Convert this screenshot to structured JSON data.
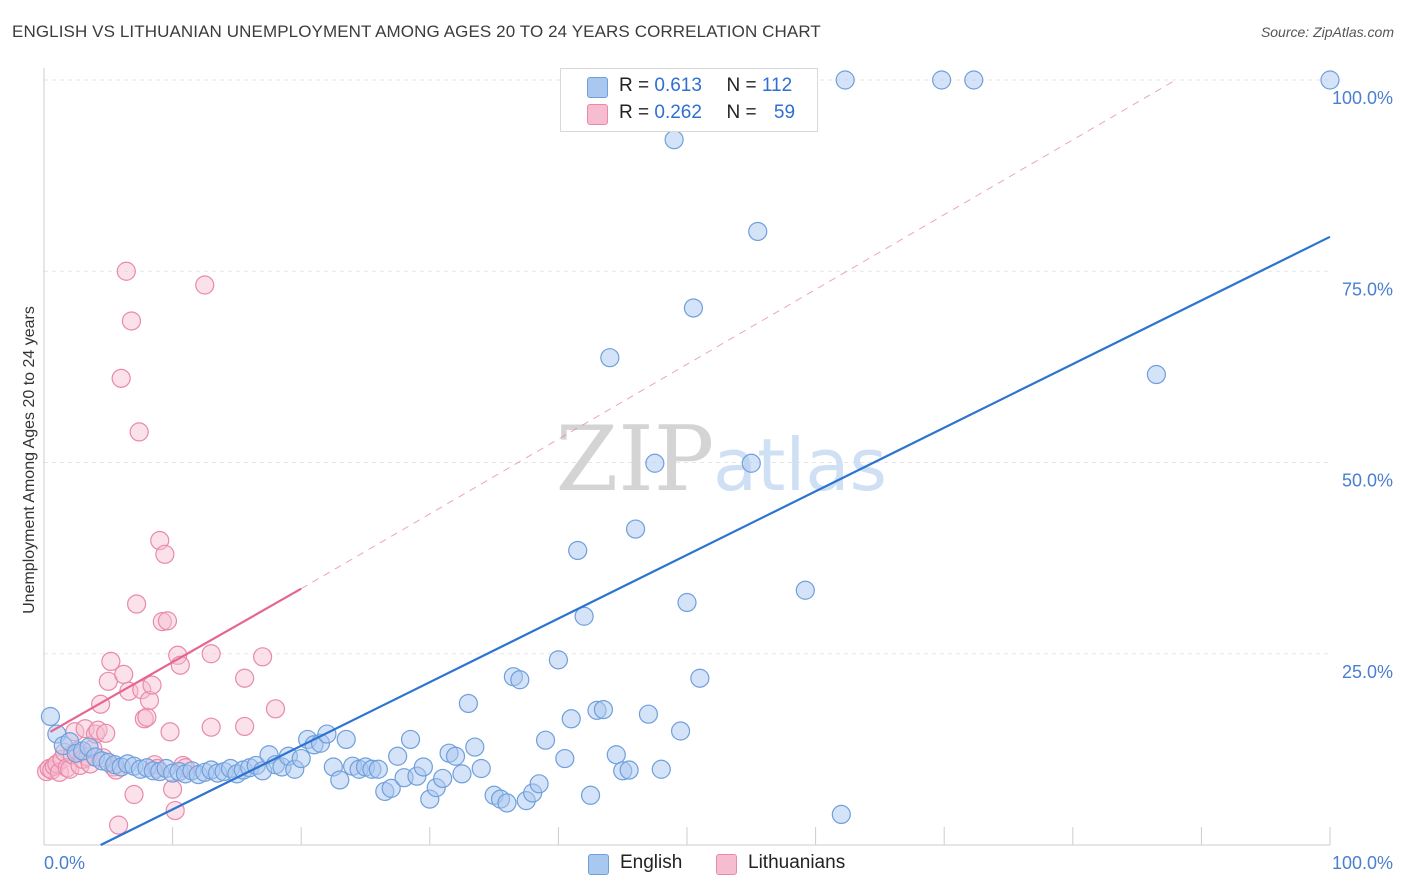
{
  "header": {
    "title": "ENGLISH VS LITHUANIAN UNEMPLOYMENT AMONG AGES 20 TO 24 YEARS CORRELATION CHART",
    "source": "Source: ZipAtlas.com"
  },
  "watermark": {
    "zip": "ZIP",
    "atlas": "atlas"
  },
  "legend": {
    "english": {
      "r_label": "R =",
      "r_value": "0.613",
      "n_label": "N =",
      "n_value": "112"
    },
    "lithuanians": {
      "r_label": "R =",
      "r_value": "0.262",
      "n_label": "N =",
      "n_value": "59"
    }
  },
  "bottom_legend": {
    "english": "English",
    "lithuanians": "Lithuanians"
  },
  "colors": {
    "english_fill": "#a9c8f0",
    "english_stroke": "#6f9fdc",
    "english_line": "#2c74d0",
    "lith_fill": "#f6bcd0",
    "lith_stroke": "#e98aa9",
    "lith_line": "#e5658f",
    "axis_text": "#4a7fd0",
    "grid": "#e6e6e6"
  },
  "chart_data": {
    "type": "scatter",
    "title": "ENGLISH VS LITHUANIAN UNEMPLOYMENT AMONG AGES 20 TO 24 YEARS CORRELATION CHART",
    "xlabel": "",
    "ylabel": "Unemployment Among Ages 20 to 24 years",
    "xlim": [
      0,
      100
    ],
    "ylim": [
      0,
      100
    ],
    "x_tick_labels": [
      {
        "value": 0,
        "label": "0.0%"
      },
      {
        "value": 100,
        "label": "100.0%"
      }
    ],
    "y_tick_labels": [
      {
        "value": 25,
        "label": "25.0%"
      },
      {
        "value": 50,
        "label": "50.0%"
      },
      {
        "value": 75,
        "label": "75.0%"
      },
      {
        "value": 100,
        "label": "100.0%"
      }
    ],
    "legend_position": "top-center",
    "grid": true,
    "series": [
      {
        "name": "English",
        "points": [
          [
            0.5,
            16.8
          ],
          [
            1,
            14.5
          ],
          [
            1.5,
            13
          ],
          [
            2,
            13.5
          ],
          [
            2.5,
            12
          ],
          [
            3,
            12.3
          ],
          [
            3.5,
            12.8
          ],
          [
            4,
            11.5
          ],
          [
            4.5,
            11
          ],
          [
            5,
            10.8
          ],
          [
            5.5,
            10.5
          ],
          [
            6,
            10.2
          ],
          [
            6.5,
            10.6
          ],
          [
            7,
            10.3
          ],
          [
            7.5,
            9.9
          ],
          [
            8,
            10.1
          ],
          [
            8.5,
            9.7
          ],
          [
            9,
            9.6
          ],
          [
            9.5,
            10
          ],
          [
            10,
            9.4
          ],
          [
            10.5,
            9.6
          ],
          [
            11,
            9.3
          ],
          [
            11.5,
            9.7
          ],
          [
            12,
            9.2
          ],
          [
            12.5,
            9.5
          ],
          [
            13,
            9.8
          ],
          [
            13.5,
            9.4
          ],
          [
            14,
            9.6
          ],
          [
            14.5,
            10
          ],
          [
            15,
            9.3
          ],
          [
            15.5,
            9.8
          ],
          [
            16,
            10.1
          ],
          [
            16.5,
            10.4
          ],
          [
            17,
            9.7
          ],
          [
            17.5,
            11.8
          ],
          [
            18,
            10.5
          ],
          [
            18.5,
            10.2
          ],
          [
            19,
            11.6
          ],
          [
            19.5,
            9.9
          ],
          [
            20,
            11.3
          ],
          [
            20.5,
            13.8
          ],
          [
            21,
            13.1
          ],
          [
            21.5,
            13.3
          ],
          [
            22,
            14.5
          ],
          [
            22.5,
            10.2
          ],
          [
            23,
            8.5
          ],
          [
            23.5,
            13.8
          ],
          [
            24,
            10.3
          ],
          [
            24.5,
            9.9
          ],
          [
            25,
            10.2
          ],
          [
            25.5,
            9.9
          ],
          [
            26,
            9.9
          ],
          [
            26.5,
            7
          ],
          [
            27,
            7.4
          ],
          [
            27.5,
            11.6
          ],
          [
            28,
            8.8
          ],
          [
            28.5,
            13.8
          ],
          [
            29,
            9
          ],
          [
            29.5,
            10.2
          ],
          [
            30,
            6
          ],
          [
            30.5,
            7.5
          ],
          [
            31,
            8.7
          ],
          [
            31.5,
            12
          ],
          [
            32,
            11.6
          ],
          [
            32.5,
            9.3
          ],
          [
            33,
            18.5
          ],
          [
            33.5,
            12.8
          ],
          [
            34,
            10
          ],
          [
            35,
            6.5
          ],
          [
            35.5,
            6
          ],
          [
            36,
            5.5
          ],
          [
            36.5,
            22
          ],
          [
            37,
            21.6
          ],
          [
            37.5,
            5.8
          ],
          [
            38,
            6.8
          ],
          [
            38.5,
            8
          ],
          [
            39,
            13.7
          ],
          [
            40,
            24.2
          ],
          [
            40.5,
            11.3
          ],
          [
            41,
            16.5
          ],
          [
            41.5,
            38.5
          ],
          [
            42,
            29.9
          ],
          [
            42.5,
            6.5
          ],
          [
            43,
            17.6
          ],
          [
            43.5,
            17.7
          ],
          [
            44,
            63.7
          ],
          [
            44.5,
            11.8
          ],
          [
            45,
            9.7
          ],
          [
            45.5,
            9.8
          ],
          [
            46,
            41.3
          ],
          [
            47,
            17.1
          ],
          [
            47.5,
            49.9
          ],
          [
            48,
            9.9
          ],
          [
            49,
            92.2
          ],
          [
            49.5,
            14.9
          ],
          [
            50,
            31.7
          ],
          [
            50.5,
            70.2
          ],
          [
            51,
            21.8
          ],
          [
            51.5,
            99.7
          ],
          [
            52,
            100
          ],
          [
            55,
            49.9
          ],
          [
            55.5,
            80.2
          ],
          [
            56.8,
            100
          ],
          [
            59.2,
            33.3
          ],
          [
            62,
            4
          ],
          [
            62.3,
            100
          ],
          [
            69.8,
            100
          ],
          [
            72.3,
            100
          ],
          [
            86.5,
            61.5
          ],
          [
            100,
            100
          ]
        ]
      },
      {
        "name": "Lithuanians",
        "points": [
          [
            0.2,
            9.6
          ],
          [
            0.4,
            10
          ],
          [
            0.6,
            9.8
          ],
          [
            0.8,
            10.3
          ],
          [
            1,
            10.6
          ],
          [
            1.2,
            9.5
          ],
          [
            1.4,
            11.2
          ],
          [
            1.6,
            12.1
          ],
          [
            1.8,
            10.1
          ],
          [
            2,
            9.9
          ],
          [
            2.2,
            11.8
          ],
          [
            2.4,
            14.8
          ],
          [
            2.6,
            12.3
          ],
          [
            2.8,
            10.4
          ],
          [
            3,
            11.2
          ],
          [
            3.2,
            15.2
          ],
          [
            3.4,
            11.5
          ],
          [
            3.6,
            10.6
          ],
          [
            3.8,
            12.6
          ],
          [
            4,
            14.5
          ],
          [
            4.2,
            15
          ],
          [
            4.4,
            18.4
          ],
          [
            4.6,
            11.4
          ],
          [
            4.8,
            14.6
          ],
          [
            5,
            21.4
          ],
          [
            5.2,
            24
          ],
          [
            5.4,
            10.2
          ],
          [
            5.6,
            9.8
          ],
          [
            5.8,
            2.6
          ],
          [
            6,
            61
          ],
          [
            6.2,
            22.3
          ],
          [
            6.4,
            75
          ],
          [
            6.6,
            20.1
          ],
          [
            6.8,
            68.5
          ],
          [
            7,
            6.6
          ],
          [
            7.2,
            31.5
          ],
          [
            7.4,
            54
          ],
          [
            7.6,
            20.3
          ],
          [
            7.8,
            16.5
          ],
          [
            8,
            16.7
          ],
          [
            8.2,
            18.9
          ],
          [
            8.4,
            20.9
          ],
          [
            8.6,
            10.5
          ],
          [
            8.8,
            10
          ],
          [
            9,
            39.8
          ],
          [
            9.2,
            29.2
          ],
          [
            9.4,
            38
          ],
          [
            9.6,
            29.3
          ],
          [
            9.8,
            14.8
          ],
          [
            10,
            7.3
          ],
          [
            10.2,
            4.5
          ],
          [
            10.4,
            24.8
          ],
          [
            10.6,
            23.5
          ],
          [
            10.8,
            10.4
          ],
          [
            11,
            10.1
          ],
          [
            12.5,
            73.2
          ],
          [
            13,
            15.4
          ],
          [
            13,
            25
          ],
          [
            15.6,
            15.5
          ],
          [
            15.6,
            21.8
          ],
          [
            17,
            24.6
          ],
          [
            18,
            17.8
          ]
        ]
      }
    ],
    "trend_lines": [
      {
        "series": "English",
        "x": [
          2,
          100
        ],
        "y": [
          -2,
          79.5
        ],
        "style": "solid"
      },
      {
        "series": "Lithuanians",
        "x": [
          0.5,
          20
        ],
        "y": [
          14.8,
          33.5
        ],
        "style": "solid"
      },
      {
        "series": "Lithuanians",
        "x": [
          20,
          88
        ],
        "y": [
          33.5,
          100
        ],
        "style": "dashed"
      }
    ]
  }
}
